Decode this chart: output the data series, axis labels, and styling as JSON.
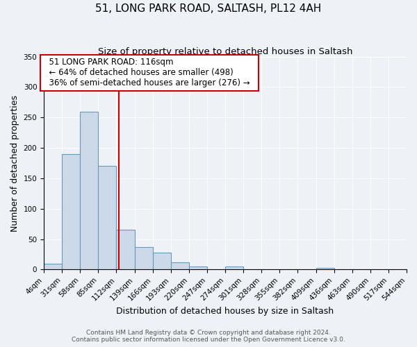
{
  "title": "51, LONG PARK ROAD, SALTASH, PL12 4AH",
  "subtitle": "Size of property relative to detached houses in Saltash",
  "xlabel": "Distribution of detached houses by size in Saltash",
  "ylabel": "Number of detached properties",
  "bin_edges": [
    4,
    31,
    58,
    85,
    112,
    139,
    166,
    193,
    220,
    247,
    274,
    301,
    328,
    355,
    382,
    409,
    436,
    463,
    490,
    517,
    544
  ],
  "bin_counts": [
    10,
    190,
    260,
    170,
    65,
    37,
    28,
    12,
    5,
    0,
    5,
    0,
    0,
    0,
    0,
    3,
    0,
    0,
    0,
    0
  ],
  "bar_facecolor": "#ccd9e8",
  "bar_edgecolor": "#6699bb",
  "vline_x": 116,
  "vline_color": "#cc0000",
  "annotation_text": "  51 LONG PARK ROAD: 116sqm  \n  ← 64% of detached houses are smaller (498)  \n  36% of semi-detached houses are larger (276) →  ",
  "annotation_bbox_facecolor": "white",
  "annotation_bbox_edgecolor": "#cc0000",
  "ylim": [
    0,
    350
  ],
  "tick_labels": [
    "4sqm",
    "31sqm",
    "58sqm",
    "85sqm",
    "112sqm",
    "139sqm",
    "166sqm",
    "193sqm",
    "220sqm",
    "247sqm",
    "274sqm",
    "301sqm",
    "328sqm",
    "355sqm",
    "382sqm",
    "409sqm",
    "436sqm",
    "463sqm",
    "490sqm",
    "517sqm",
    "544sqm"
  ],
  "footer_line1": "Contains HM Land Registry data © Crown copyright and database right 2024.",
  "footer_line2": "Contains public sector information licensed under the Open Government Licence v3.0.",
  "background_color": "#eef2f7",
  "grid_color": "white",
  "title_fontsize": 11,
  "subtitle_fontsize": 9.5,
  "axis_label_fontsize": 9,
  "tick_fontsize": 7.5,
  "annotation_fontsize": 8.5,
  "footer_fontsize": 6.5
}
